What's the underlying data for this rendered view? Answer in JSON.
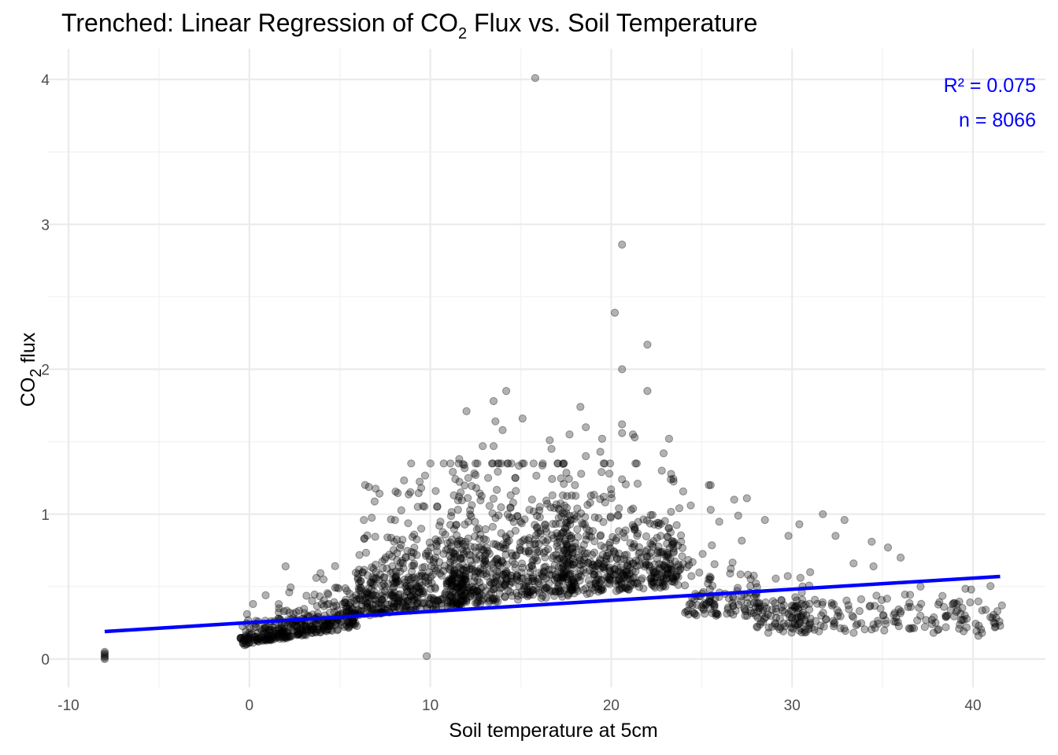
{
  "colors": {
    "point": "#000000",
    "regression": "#0000FF",
    "annotation": "#0000FF",
    "grid_major": "#EBEBEB",
    "grid_minor": "#F3F3F3",
    "background": "#FFFFFF"
  },
  "chart_data": {
    "type": "scatter",
    "title": {
      "prefix": "Trenched: Linear Regression of CO",
      "subscript": "2",
      "suffix": " Flux vs. Soil Temperature"
    },
    "xlabel": "Soil temperature at 5cm",
    "ylabel": {
      "prefix": "CO",
      "subscript": "2",
      "suffix": " flux"
    },
    "xlim": [
      -10,
      42
    ],
    "ylim": [
      0,
      4
    ],
    "x_ticks": [
      -10,
      0,
      10,
      20,
      30,
      40
    ],
    "x_tick_labels": [
      "-10",
      "0",
      "10",
      "20",
      "30",
      "40"
    ],
    "y_ticks": [
      0,
      1,
      2,
      3,
      4
    ],
    "y_tick_labels": [
      "0",
      "1",
      "2",
      "3",
      "4"
    ],
    "grid": true,
    "legend": "none",
    "annotations": {
      "r2": "R² = 0.075",
      "n": "n = 8066"
    },
    "regression_line": {
      "x": [
        -8,
        41.5
      ],
      "y": [
        0.19,
        0.57
      ]
    },
    "n_points": 8066,
    "point_opacity": 0.3,
    "points": [
      [
        15.8,
        4.01
      ],
      [
        20.6,
        2.86
      ],
      [
        20.2,
        2.39
      ],
      [
        22.0,
        2.17
      ],
      [
        20.6,
        2.0
      ],
      [
        22.0,
        1.85
      ],
      [
        14.2,
        1.85
      ],
      [
        13.5,
        1.78
      ],
      [
        12.0,
        1.71
      ],
      [
        18.3,
        1.74
      ],
      [
        15.1,
        1.66
      ],
      [
        13.6,
        1.64
      ],
      [
        14.0,
        1.58
      ],
      [
        18.6,
        1.6
      ],
      [
        20.6,
        1.62
      ],
      [
        20.6,
        1.56
      ],
      [
        21.2,
        1.55
      ],
      [
        21.3,
        1.53
      ],
      [
        19.5,
        1.52
      ],
      [
        23.2,
        1.52
      ],
      [
        16.6,
        1.51
      ],
      [
        17.7,
        1.55
      ],
      [
        13.5,
        1.47
      ],
      [
        12.9,
        1.47
      ],
      [
        16.7,
        1.45
      ],
      [
        19.4,
        1.43
      ],
      [
        22.9,
        1.42
      ],
      [
        18.6,
        1.4
      ],
      [
        11.6,
        1.38
      ],
      [
        22.8,
        1.3
      ],
      [
        12.5,
        1.27
      ],
      [
        12.1,
        1.25
      ],
      [
        13.2,
        1.25
      ],
      [
        14.7,
        1.25
      ],
      [
        19.9,
        1.28
      ],
      [
        20.6,
        1.24
      ],
      [
        23.3,
        1.24
      ],
      [
        25.5,
        1.2
      ],
      [
        25.4,
        1.2
      ],
      [
        9.5,
        1.18
      ],
      [
        10.3,
        1.16
      ],
      [
        11.3,
        1.13
      ],
      [
        18.0,
        1.2
      ],
      [
        27.5,
        1.11
      ],
      [
        26.8,
        1.1
      ],
      [
        24.4,
        1.06
      ],
      [
        25.5,
        1.03
      ],
      [
        31.7,
        1.0
      ],
      [
        32.9,
        0.96
      ],
      [
        30.4,
        0.93
      ],
      [
        28.5,
        0.96
      ],
      [
        9.5,
        0.9
      ],
      [
        10.5,
        0.92
      ],
      [
        8.0,
        0.81
      ],
      [
        32.4,
        0.85
      ],
      [
        29.8,
        0.85
      ],
      [
        34.4,
        0.81
      ],
      [
        35.3,
        0.77
      ],
      [
        36.0,
        0.7
      ],
      [
        33.4,
        0.66
      ],
      [
        34.5,
        0.64
      ],
      [
        2.0,
        0.64
      ],
      [
        0.2,
        0.38
      ],
      [
        0.9,
        0.44
      ],
      [
        2.2,
        0.46
      ],
      [
        3.7,
        0.56
      ],
      [
        4.1,
        0.55
      ],
      [
        5.4,
        0.47
      ],
      [
        6.0,
        0.55
      ],
      [
        7.0,
        0.6
      ],
      [
        31.0,
        0.6
      ],
      [
        37.1,
        0.5
      ],
      [
        39.9,
        0.48
      ],
      [
        40.7,
        0.34
      ],
      [
        41.6,
        0.37
      ],
      [
        41.5,
        0.23
      ],
      [
        40.3,
        0.16
      ],
      [
        40.5,
        0.18
      ],
      [
        39.5,
        0.27
      ],
      [
        38.5,
        0.22
      ],
      [
        9.8,
        0.02
      ],
      [
        -8.0,
        0.05
      ],
      [
        -8.0,
        0.03
      ],
      [
        -8.0,
        0.01
      ],
      [
        -8.0,
        0.02
      ],
      [
        -8.0,
        0.04
      ],
      [
        -8.0,
        0.0
      ]
    ]
  }
}
